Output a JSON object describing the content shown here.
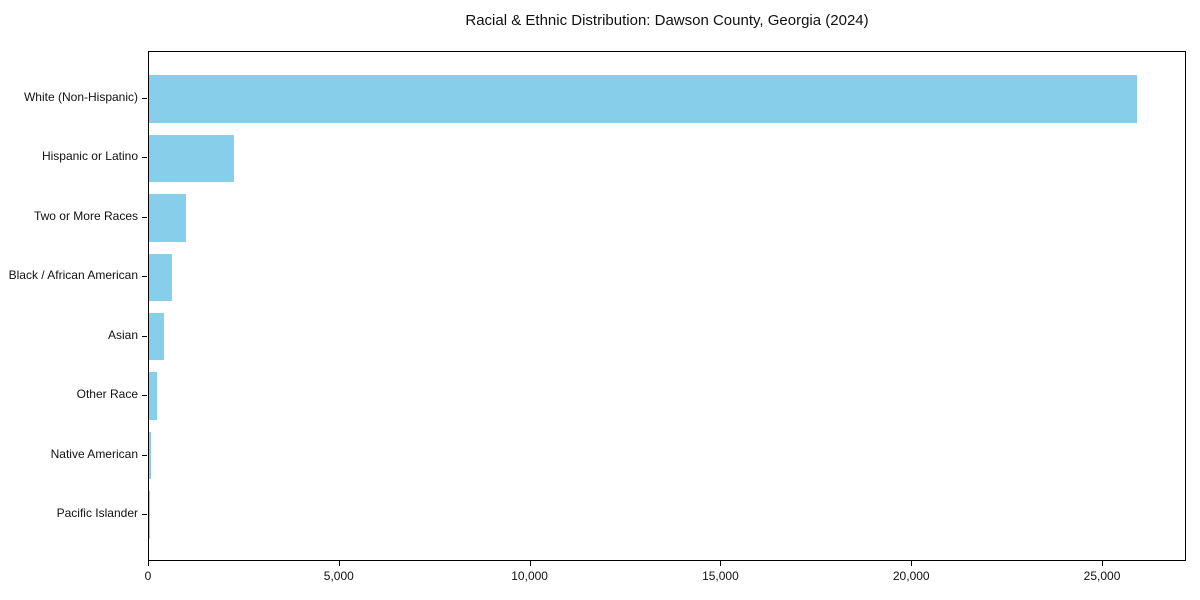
{
  "chart_data": {
    "type": "bar",
    "orientation": "horizontal",
    "title": "Racial & Ethnic Distribution: Dawson County, Georgia (2024)",
    "categories": [
      "White (Non-Hispanic)",
      "Hispanic or Latino",
      "Two or More Races",
      "Black / African American",
      "Asian",
      "Other Race",
      "Native American",
      "Pacific Islander"
    ],
    "values": [
      25900,
      2230,
      960,
      610,
      380,
      200,
      60,
      15
    ],
    "xlabel": "",
    "ylabel": "",
    "xlim": [
      0,
      27200
    ],
    "xticks": [
      0,
      5000,
      10000,
      15000,
      20000,
      25000
    ],
    "xtick_labels": [
      "0",
      "5,000",
      "10,000",
      "15,000",
      "20,000",
      "25,000"
    ],
    "bar_color": "#87CEEB",
    "text_color": "#111111",
    "grid": false,
    "legend": "none",
    "sort_order": "descending"
  }
}
